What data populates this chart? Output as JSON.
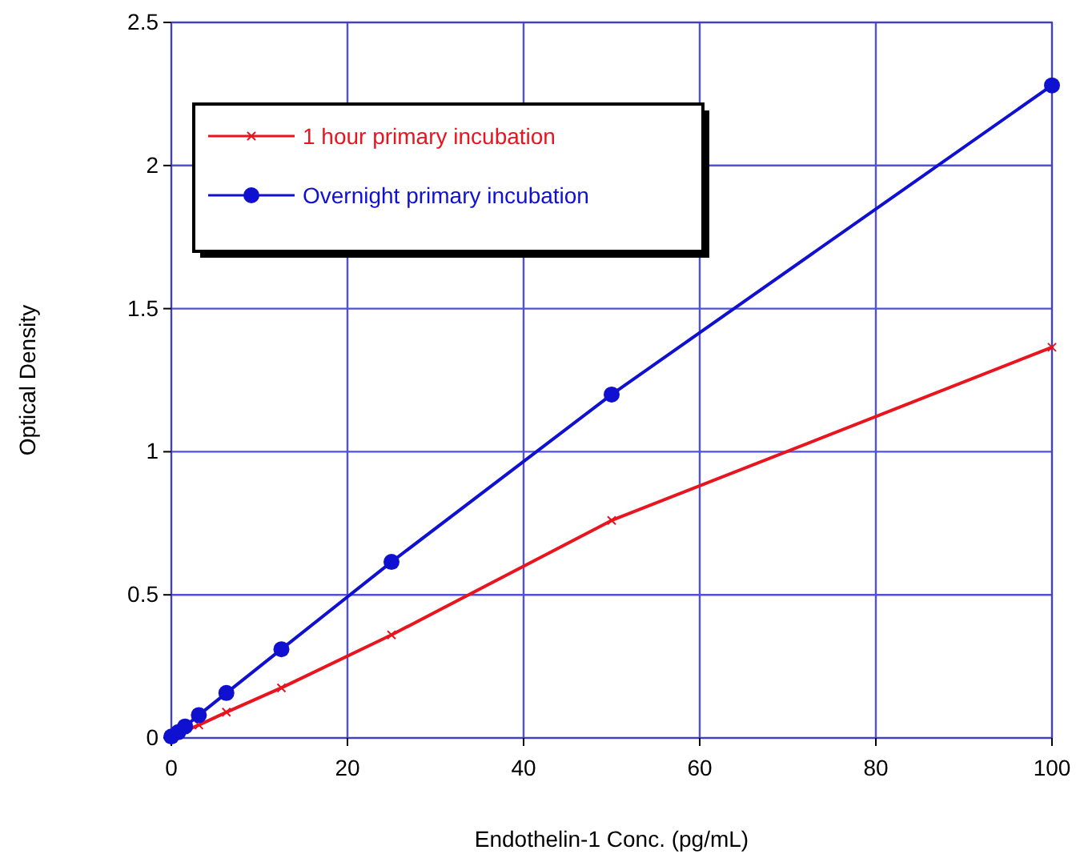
{
  "chart_data": {
    "type": "line",
    "xlabel": "Endothelin-1 Conc. (pg/mL)",
    "ylabel": "Optical Density",
    "xlim": [
      0,
      100
    ],
    "xticks": [
      0,
      20,
      40,
      60,
      80,
      100
    ],
    "ylim": [
      0,
      2.5
    ],
    "yticks": [
      0,
      0.5,
      1,
      1.5,
      2,
      2.5
    ],
    "grid": true,
    "legend": "top left",
    "line_style": "solid",
    "series": [
      {
        "name": "1 hour primary incubation",
        "color": "#e8141e",
        "marker": "cross",
        "x": [
          0,
          0.78,
          1.56,
          3.125,
          6.25,
          12.5,
          25,
          50,
          100
        ],
        "values": [
          0.005,
          null,
          null,
          0.045,
          0.09,
          0.175,
          0.36,
          0.76,
          1.365
        ]
      },
      {
        "name": "Overnight primary incubation",
        "color": "#1010d0",
        "marker": "circle",
        "x": [
          0,
          0.78,
          1.56,
          3.125,
          6.25,
          12.5,
          25,
          50,
          100
        ],
        "values": [
          0.005,
          0.02,
          0.04,
          0.08,
          0.157,
          0.31,
          0.615,
          1.2,
          2.28
        ]
      }
    ]
  }
}
